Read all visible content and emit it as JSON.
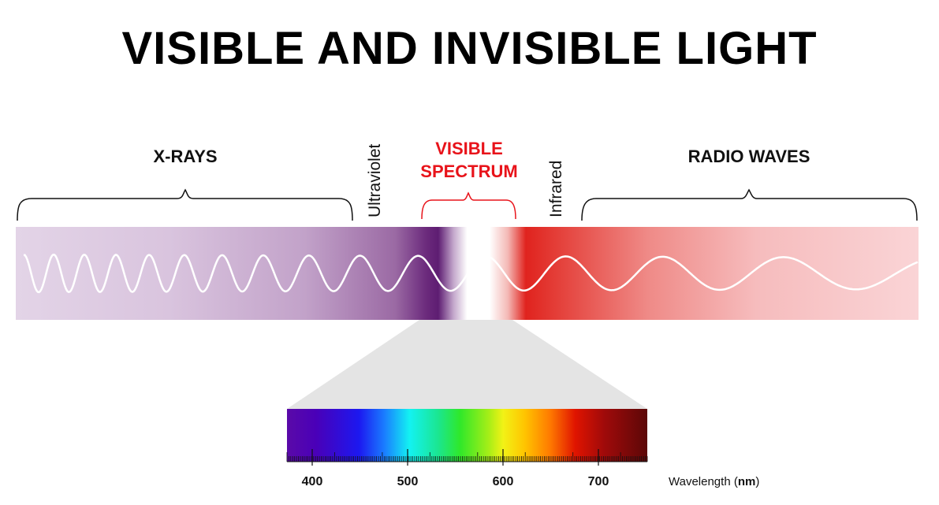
{
  "title": "VISIBLE AND INVISIBLE LIGHT",
  "labels": {
    "xrays": "X-RAYS",
    "ultraviolet": "Ultraviolet",
    "visible_line1": "VISIBLE",
    "visible_line2": "SPECTRUM",
    "infrared": "Infrared",
    "radio": "RADIO WAVES"
  },
  "scale": {
    "tick_labels": [
      "400",
      "500",
      "600",
      "700"
    ],
    "axis_label_prefix": "Wavelength (",
    "axis_label_unit": "nm",
    "axis_label_suffix": ")"
  },
  "colors": {
    "visible_label": "#e8131a",
    "band_violet": "#6a2a7c",
    "band_red": "#e0231e",
    "band_pink": "#f9d2d4",
    "band_lavender": "#e2d3e8",
    "funnel": "#e3e3e3",
    "wave": "#ffffff"
  }
}
